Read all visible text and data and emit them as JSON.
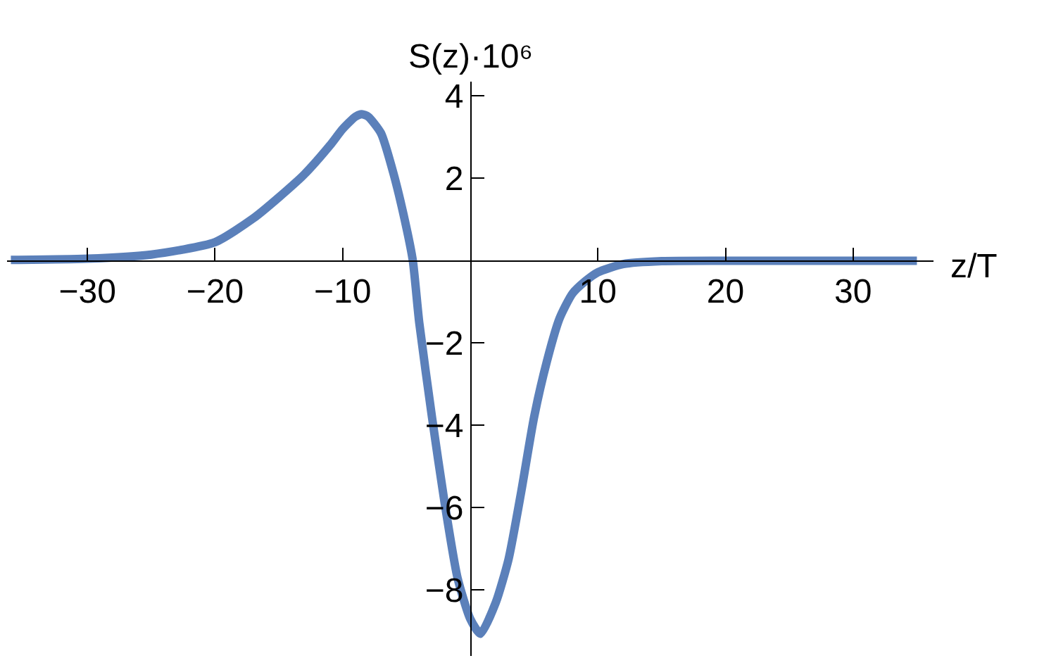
{
  "chart_data": {
    "type": "line",
    "xlabel": "z/T",
    "ylabel": "S(z)·10⁶",
    "x": [
      -36,
      -30,
      -25,
      -20,
      -17,
      -15,
      -13,
      -11,
      -10,
      -9,
      -8.5,
      -8,
      -7,
      -6,
      -5,
      -4.5,
      -4,
      -3,
      -2,
      -1,
      0,
      0.8,
      2,
      3,
      4,
      5,
      6,
      7,
      8,
      9,
      10,
      12,
      15,
      20,
      35
    ],
    "series": [
      {
        "color": "#5b80ba",
        "values": [
          0.02,
          0.05,
          0.15,
          0.45,
          1.03,
          1.54,
          2.1,
          2.8,
          3.2,
          3.5,
          3.56,
          3.5,
          3.1,
          2.1,
          0.8,
          0,
          -1.5,
          -3.8,
          -5.9,
          -7.7,
          -8.7,
          -9.06,
          -8.3,
          -7.25,
          -5.6,
          -3.8,
          -2.45,
          -1.4,
          -0.8,
          -0.5,
          -0.28,
          -0.08,
          -0.01,
          0,
          0
        ]
      }
    ],
    "xlim": [
      -36.3,
      36.3
    ],
    "ylim": [
      -9.6,
      4.35
    ],
    "xticks": [
      -30,
      -20,
      -10,
      10,
      20,
      30
    ],
    "yticks": [
      -8,
      -6,
      -4,
      -2,
      2,
      4
    ],
    "marker": "none",
    "line_style": "solid"
  }
}
